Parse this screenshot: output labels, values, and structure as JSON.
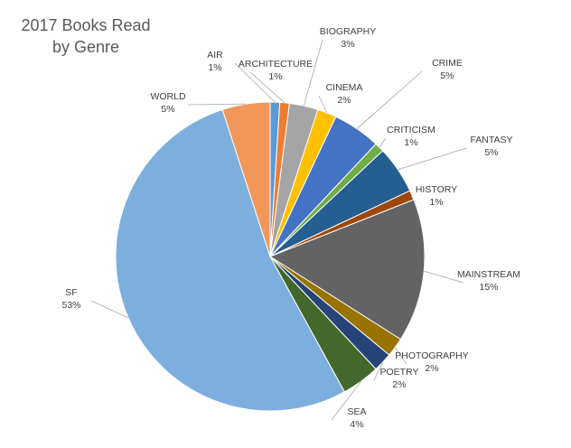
{
  "chart_data": {
    "type": "pie",
    "title_line1": "2017 Books Read",
    "title_line2": "by Genre",
    "slices": [
      {
        "name": "AIR",
        "value": 1,
        "label": "1%",
        "color": "#5b9bd5"
      },
      {
        "name": "ARCHITECTURE",
        "value": 1,
        "label": "1%",
        "color": "#ed7d31"
      },
      {
        "name": "BIOGRAPHY",
        "value": 3,
        "label": "3%",
        "color": "#a5a5a5"
      },
      {
        "name": "CINEMA",
        "value": 2,
        "label": "2%",
        "color": "#ffc000"
      },
      {
        "name": "CRIME",
        "value": 5,
        "label": "5%",
        "color": "#4472c4"
      },
      {
        "name": "CRITICISM",
        "value": 1,
        "label": "1%",
        "color": "#70ad47"
      },
      {
        "name": "FANTASY",
        "value": 5,
        "label": "5%",
        "color": "#255e91"
      },
      {
        "name": "HISTORY",
        "value": 1,
        "label": "1%",
        "color": "#9e480e"
      },
      {
        "name": "MAINSTREAM",
        "value": 15,
        "label": "15%",
        "color": "#636363"
      },
      {
        "name": "PHOTOGRAPHY",
        "value": 2,
        "label": "2%",
        "color": "#997300"
      },
      {
        "name": "POETRY",
        "value": 2,
        "label": "2%",
        "color": "#264478"
      },
      {
        "name": "SEA",
        "value": 4,
        "label": "4%",
        "color": "#43682b"
      },
      {
        "name": "SF",
        "value": 53,
        "label": "53%",
        "color": "#7cafdd"
      },
      {
        "name": "WORLD",
        "value": 5,
        "label": "5%",
        "color": "#f1975a"
      }
    ]
  }
}
